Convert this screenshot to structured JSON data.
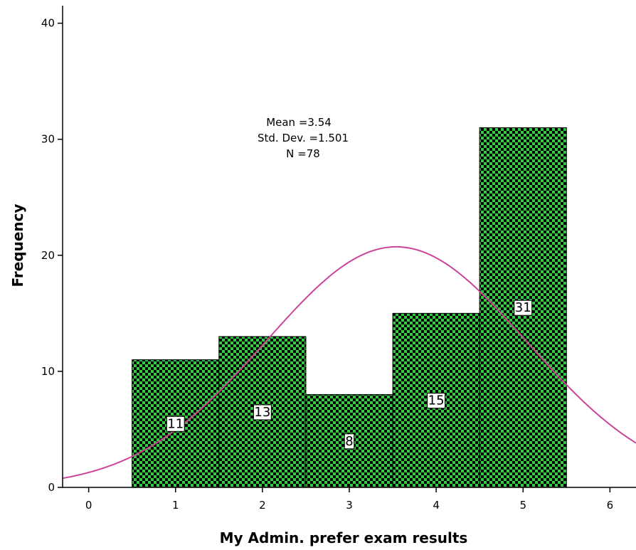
{
  "chart_data": {
    "type": "bar",
    "subtype": "histogram",
    "xlabel": "My Admin. prefer exam results",
    "ylabel": "Frequency",
    "categories": [
      1,
      2,
      3,
      4,
      5
    ],
    "values": [
      11,
      13,
      8,
      15,
      31
    ],
    "data_labels": [
      "11",
      "13",
      "8",
      "15",
      "31"
    ],
    "bin_width": 1,
    "xlim": [
      -0.3,
      6.3
    ],
    "ylim": [
      0,
      42
    ],
    "x_ticks": [
      0,
      1,
      2,
      3,
      4,
      5,
      6
    ],
    "y_ticks": [
      0,
      10,
      20,
      30,
      40
    ],
    "stats": {
      "mean_text": "Mean =3.54",
      "sd_text": "Std. Dev. =1.501",
      "n_text": "N =78"
    },
    "normal_curve": {
      "mean": 3.54,
      "sd": 1.501,
      "n": 78
    },
    "grid": false,
    "colors": {
      "bar_fill": "#33cc44",
      "bar_pattern": "#000000",
      "curve": "#cc4499",
      "axis": "#000000"
    }
  }
}
